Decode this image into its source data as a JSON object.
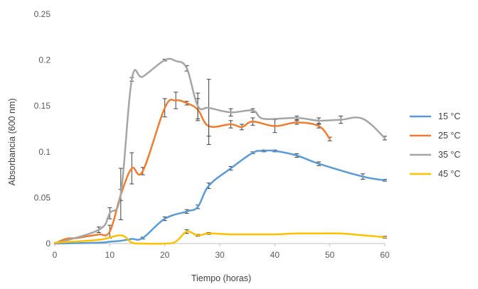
{
  "chart_data": {
    "type": "line",
    "xlabel": "Tiempo (horas)",
    "ylabel": "Absorbancia (600 nm)",
    "xlim": [
      0,
      60
    ],
    "ylim": [
      0,
      0.25
    ],
    "x_ticks": [
      0,
      10,
      20,
      30,
      40,
      50,
      60
    ],
    "y_ticks": [
      0,
      0.05,
      0.1,
      0.15,
      0.2,
      0.25
    ],
    "x_tick_labels": [
      "0",
      "10",
      "20",
      "30",
      "40",
      "50",
      "60"
    ],
    "y_tick_labels": [
      "0",
      "0.05",
      "0.1",
      "0.15",
      "0.2",
      "0.25"
    ],
    "grid": false,
    "legend_position": "right",
    "series": [
      {
        "name": "15 °C",
        "color": "#5B9BD5",
        "x": [
          0,
          8,
          10,
          12,
          14,
          16,
          20,
          24,
          26,
          28,
          32,
          36,
          38,
          40,
          44,
          48,
          56,
          60
        ],
        "y": [
          0,
          0.001,
          0.002,
          0.003,
          0.005,
          0.006,
          0.027,
          0.035,
          0.04,
          0.063,
          0.082,
          0.099,
          0.101,
          0.101,
          0.096,
          0.087,
          0.073,
          0.069
        ],
        "err": [
          0,
          0,
          0,
          0,
          0,
          0.001,
          0.002,
          0.002,
          0.002,
          0.003,
          0.002,
          0.001,
          0.001,
          0.001,
          0.002,
          0.002,
          0.003,
          0.001
        ]
      },
      {
        "name": "25 °C",
        "color": "#ED7D31",
        "x": [
          0,
          2,
          4,
          6,
          8,
          10,
          12,
          14,
          16,
          20,
          22,
          24,
          26,
          28,
          32,
          34,
          36,
          40,
          44,
          48,
          50
        ],
        "y": [
          0,
          0.005,
          0.006,
          0.008,
          0.01,
          0.013,
          0.053,
          0.082,
          0.079,
          0.148,
          0.156,
          0.153,
          0.146,
          0.128,
          0.13,
          0.127,
          0.133,
          0.128,
          0.132,
          0.128,
          0.114
        ],
        "err": [
          0,
          0,
          0,
          0,
          0,
          0.007,
          0.006,
          0.017,
          0.004,
          0.01,
          0.009,
          0.002,
          0.012,
          0.02,
          0.004,
          0.003,
          0.004,
          0.007,
          0.002,
          0.002,
          0.002
        ]
      },
      {
        "name": "35 °C",
        "color": "#A5A5A5",
        "x": [
          0,
          8,
          10,
          12,
          14,
          16,
          20,
          22,
          24,
          26,
          28,
          32,
          36,
          38,
          44,
          48,
          52,
          56,
          60
        ],
        "y": [
          0,
          0.015,
          0.033,
          0.054,
          0.179,
          0.182,
          0.2,
          0.199,
          0.191,
          0.15,
          0.148,
          0.143,
          0.145,
          0.136,
          0.137,
          0.134,
          0.135,
          0.136,
          0.115
        ],
        "err": [
          0,
          0.003,
          0.006,
          0.028,
          0.002,
          0,
          0.001,
          0,
          0.003,
          0.014,
          0.031,
          0.004,
          0.002,
          0,
          0.002,
          0.003,
          0.004,
          0,
          0.002
        ]
      },
      {
        "name": "45 °C",
        "color": "#FFC000",
        "x": [
          0,
          8,
          12,
          14,
          16,
          20,
          22,
          24,
          26,
          28,
          32,
          36,
          40,
          44,
          48,
          52,
          56,
          60
        ],
        "y": [
          0.001,
          0.004,
          0.009,
          0.001,
          0,
          0,
          0.002,
          0.013,
          0.009,
          0.011,
          0.01,
          0.01,
          0.01,
          0.011,
          0.011,
          0.011,
          0.009,
          0.007
        ],
        "err": [
          0,
          0,
          0,
          0,
          0,
          0,
          0,
          0.002,
          0.001,
          0.001,
          0,
          0,
          0,
          0,
          0,
          0,
          0,
          0.001
        ]
      }
    ]
  }
}
